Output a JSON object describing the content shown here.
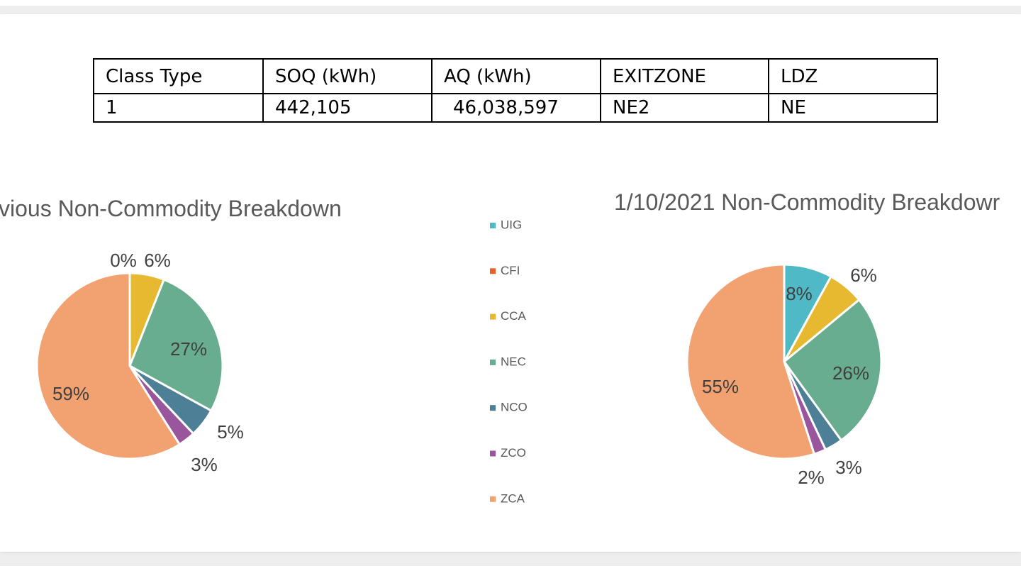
{
  "table": {
    "headers": [
      "Class Type",
      "SOQ (kWh)",
      "AQ (kWh)",
      "EXITZONE",
      "LDZ"
    ],
    "rows": [
      [
        "1",
        "442,105",
        "46,038,597",
        "NE2",
        "NE"
      ]
    ]
  },
  "legend": [
    {
      "key": "UIG",
      "label": "UIG",
      "color": "#4fb9c6"
    },
    {
      "key": "CFI",
      "label": "CFI",
      "color": "#e8622a"
    },
    {
      "key": "CCA",
      "label": "CCA",
      "color": "#e6b930"
    },
    {
      "key": "NEC",
      "label": "NEC",
      "color": "#68ad8f"
    },
    {
      "key": "NCO",
      "label": "NCO",
      "color": "#4d7f97"
    },
    {
      "key": "ZCO",
      "label": "ZCO",
      "color": "#99569d"
    },
    {
      "key": "ZCA",
      "label": "ZCA",
      "color": "#f2a170"
    }
  ],
  "chart_data": [
    {
      "type": "pie",
      "title": "vious Non-Commodity Breakdown",
      "categories": [
        "UIG",
        "CFI",
        "CCA",
        "NEC",
        "NCO",
        "ZCO",
        "ZCA"
      ],
      "values": [
        0,
        0,
        6,
        27,
        5,
        3,
        59
      ],
      "labels": [
        "",
        "0%",
        "6%",
        "27%",
        "5%",
        "3%",
        "59%"
      ]
    },
    {
      "type": "pie",
      "title": "1/10/2021 Non-Commodity Breakdowr",
      "categories": [
        "UIG",
        "CFI",
        "CCA",
        "NEC",
        "NCO",
        "ZCO",
        "ZCA"
      ],
      "values": [
        8,
        0,
        6,
        26,
        3,
        2,
        55
      ],
      "labels": [
        "8%",
        "",
        "6%",
        "26%",
        "3%",
        "2%",
        "55%"
      ]
    }
  ]
}
